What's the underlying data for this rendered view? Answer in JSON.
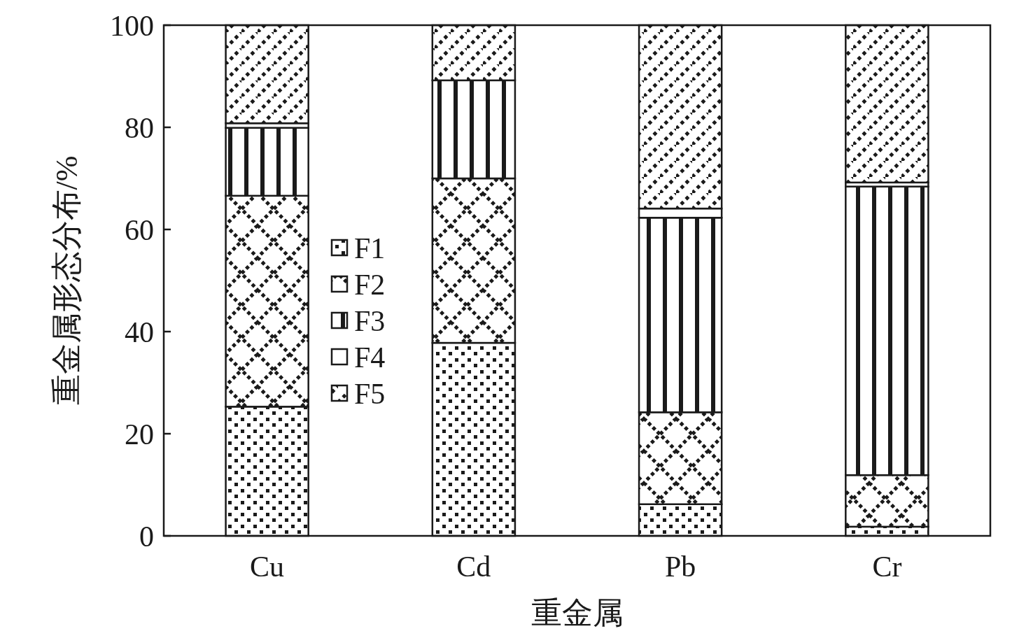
{
  "chart_data": {
    "type": "bar",
    "stacked": true,
    "xlabel": "重金属",
    "ylabel": "重金属形态分布/%",
    "categories": [
      "Cu",
      "Cd",
      "Pb",
      "Cr"
    ],
    "series": [
      {
        "name": "F1",
        "color": "#1a1a1a",
        "values": [
          25.3,
          37.8,
          6.2,
          1.8
        ]
      },
      {
        "name": "F2",
        "color": "#1a1a1a",
        "values": [
          41.3,
          32.2,
          18.0,
          10.1
        ]
      },
      {
        "name": "F3",
        "color": "#1a1a1a",
        "values": [
          13.3,
          19.2,
          38.1,
          56.5
        ]
      },
      {
        "name": "F4",
        "color": "#1a1a1a",
        "values": [
          0.9,
          0,
          1.8,
          0.8
        ]
      },
      {
        "name": "F5",
        "color": "#1a1a1a",
        "values": [
          19.2,
          10.8,
          35.9,
          30.8
        ]
      }
    ],
    "ylim": [
      0,
      100
    ],
    "yticks": [
      0,
      20,
      40,
      60,
      80,
      100
    ],
    "legend": "left",
    "grid": false
  }
}
